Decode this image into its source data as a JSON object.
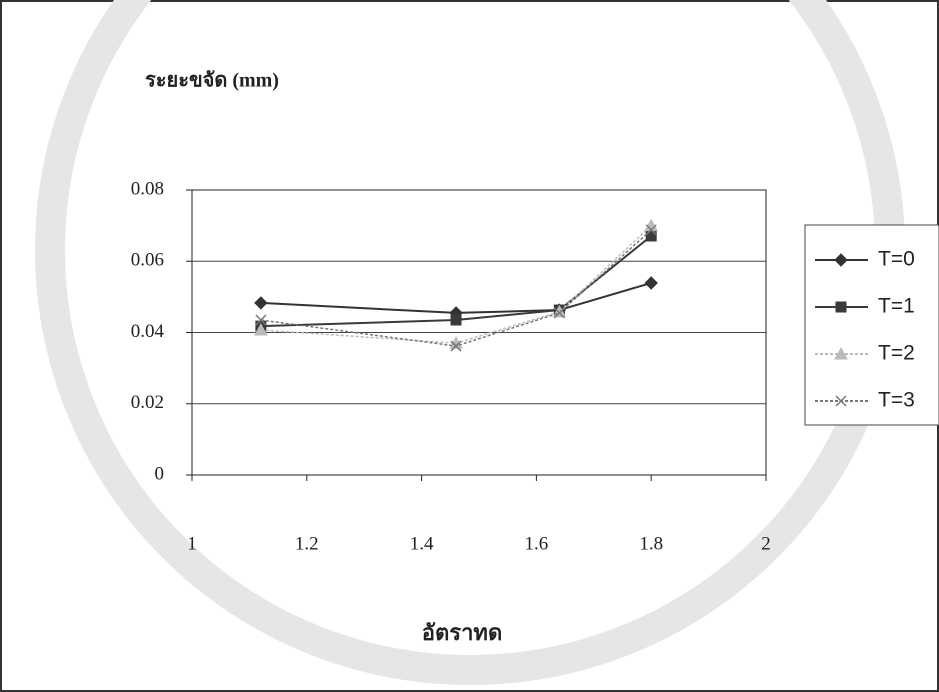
{
  "chart_data": {
    "type": "line",
    "y_label": "ระยะขจัด (mm)",
    "x_label": "อัตราทด",
    "x": [
      1.12,
      1.46,
      1.64,
      1.8
    ],
    "series": [
      {
        "name": "T=0",
        "color": "#333333",
        "marker": "diamond",
        "values": [
          0.0483,
          0.0455,
          0.0463,
          0.0539
        ]
      },
      {
        "name": "T=1",
        "color": "#3a3a3a",
        "marker": "square",
        "values": [
          0.0418,
          0.0435,
          0.0463,
          0.0671
        ]
      },
      {
        "name": "T=2",
        "color": "#bbbbbb",
        "marker": "triangle",
        "values": [
          0.0407,
          0.037,
          0.0458,
          0.07
        ]
      },
      {
        "name": "T=3",
        "color": "#777777",
        "marker": "x",
        "values": [
          0.0435,
          0.0362,
          0.0455,
          0.0688
        ]
      }
    ],
    "xlim": [
      1,
      2
    ],
    "xticks": [
      1,
      1.2,
      1.4,
      1.6,
      1.8,
      2
    ],
    "ylim": [
      0,
      0.08
    ],
    "yticks": [
      0,
      0.02,
      0.04,
      0.06,
      0.08
    ],
    "grid": true,
    "legend": "right"
  }
}
